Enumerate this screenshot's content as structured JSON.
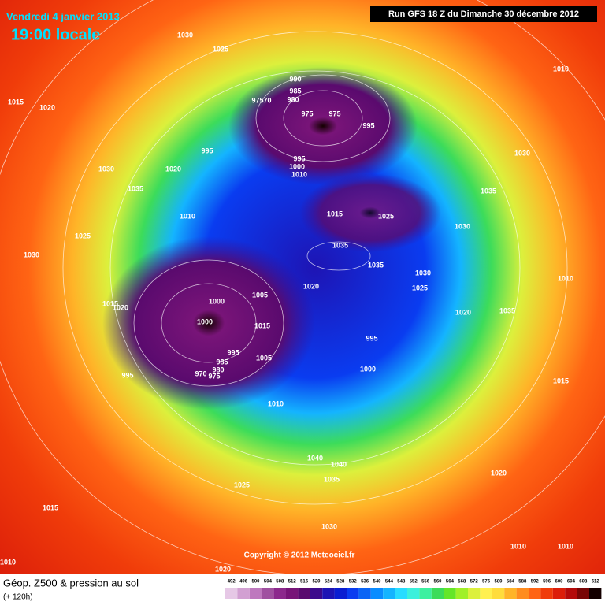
{
  "header": {
    "date": "Vendredi 4 janvier 2013",
    "time": "19:00 locale",
    "run": "Run GFS 18 Z du Dimanche 30 décembre 2012"
  },
  "footer": {
    "title": "Géop. Z500 & pression au sol",
    "lead": "(+ 120h)",
    "copyright": "Copyright © 2012 Meteociel.fr"
  },
  "legend": {
    "values": [
      492,
      496,
      500,
      504,
      508,
      512,
      516,
      520,
      524,
      528,
      532,
      536,
      540,
      544,
      548,
      552,
      556,
      560,
      564,
      568,
      572,
      576,
      580,
      584,
      588,
      592,
      596,
      600,
      604,
      608,
      612
    ],
    "colors": [
      "#e6c8e6",
      "#d2a0d2",
      "#be78be",
      "#a050a0",
      "#8c288c",
      "#781478",
      "#5a0a6e",
      "#3c0a8c",
      "#1e14b4",
      "#0a1ed2",
      "#0a3cf0",
      "#0a64f5",
      "#0a8cff",
      "#14b4ff",
      "#28dcff",
      "#3cf0dc",
      "#3cf0a0",
      "#3cdc5a",
      "#64e628",
      "#a0f028",
      "#dcf03c",
      "#fff050",
      "#ffdc3c",
      "#ffb428",
      "#ff8c1e",
      "#ff6414",
      "#f03c0a",
      "#dc1e0a",
      "#b40a0a",
      "#780505",
      "#140000"
    ]
  },
  "isobar_labels": [
    "1030",
    "1025",
    "1010",
    "1015",
    "1020",
    "990",
    "985",
    "980",
    "97570",
    "975",
    "975",
    "995",
    "995",
    "1030",
    "995",
    "1000",
    "1010",
    "1030",
    "1020",
    "1035",
    "1035",
    "1010",
    "1015",
    "1025",
    "1030",
    "1025",
    "1030",
    "1035",
    "1035",
    "1030",
    "1010",
    "1005",
    "1000",
    "1020",
    "1025",
    "1015",
    "1020",
    "1020",
    "1035",
    "1000",
    "1015",
    "995",
    "995",
    "1005",
    "985",
    "980",
    "970",
    "975",
    "995",
    "1000",
    "1015",
    "1010",
    "1040",
    "1040",
    "1035",
    "1020",
    "1025",
    "1015",
    "1030",
    "1010",
    "1010",
    "1010",
    "1020"
  ]
}
